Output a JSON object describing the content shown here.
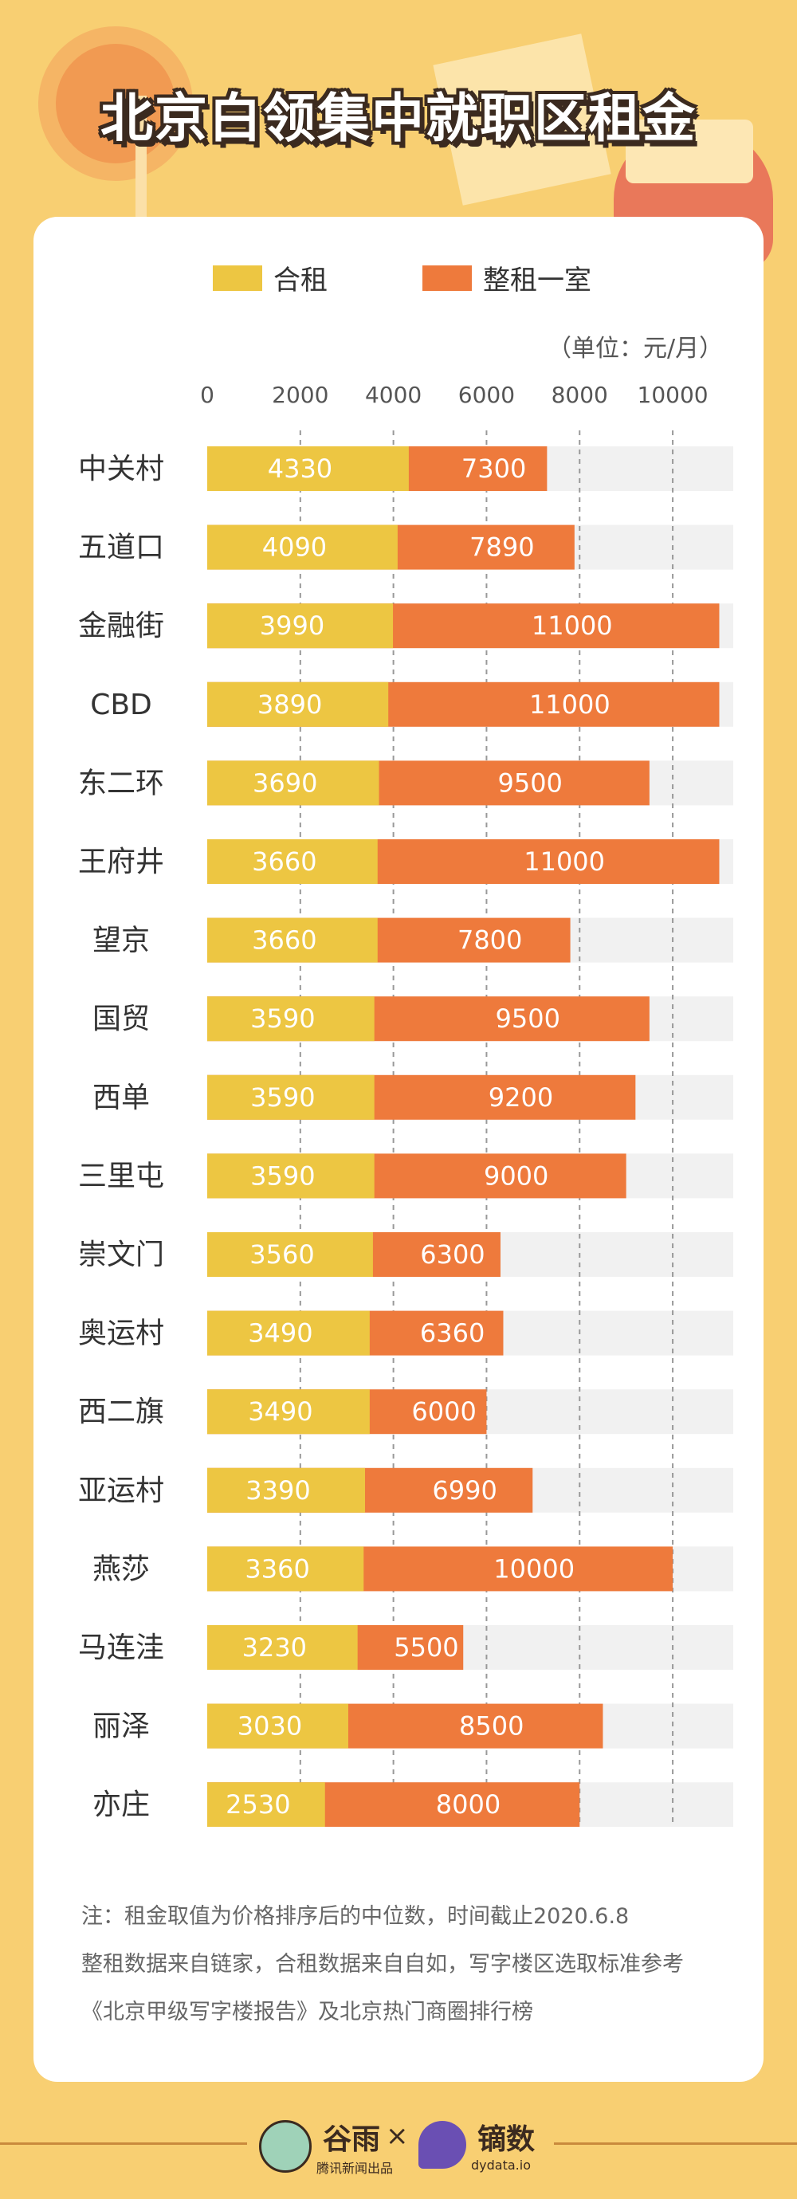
{
  "title": "北京白领集中就职区租金",
  "legend": {
    "shared": "合租",
    "whole": "整租一室"
  },
  "unit": "（单位：元/月）",
  "colors": {
    "shared": "#edc642",
    "whole": "#ee7a3c",
    "track": "#f1f1f1",
    "grid": "#999999",
    "label_light": "#ffffff"
  },
  "chart_data": {
    "type": "bar",
    "stacked_overlay": true,
    "xlim": [
      0,
      11300
    ],
    "ticks": [
      0,
      2000,
      4000,
      6000,
      8000,
      10000
    ],
    "categories": [
      "中关村",
      "五道口",
      "金融街",
      "CBD",
      "东二环",
      "王府井",
      "望京",
      "国贸",
      "西单",
      "三里屯",
      "崇文门",
      "奥运村",
      "西二旗",
      "亚运村",
      "燕莎",
      "马连洼",
      "丽泽",
      "亦庄"
    ],
    "series": [
      {
        "name": "合租",
        "values": [
          4330,
          4090,
          3990,
          3890,
          3690,
          3660,
          3660,
          3590,
          3590,
          3590,
          3560,
          3490,
          3490,
          3390,
          3360,
          3230,
          3030,
          2530
        ]
      },
      {
        "name": "整租一室",
        "values": [
          7300,
          7890,
          11000,
          11000,
          9500,
          11000,
          7800,
          9500,
          9200,
          9000,
          6300,
          6360,
          6000,
          6990,
          10000,
          5500,
          8500,
          8000
        ]
      }
    ],
    "grid": true,
    "legend_position": "top"
  },
  "notes": [
    "注：租金取值为价格排序后的中位数，时间截止2020.6.8",
    "整租数据来自链家，合租数据来自自如，写字楼区选取标准参考",
    "《北京甲级写字楼报告》及北京热门商圈排行榜"
  ],
  "footer": {
    "brand_left": "谷雨",
    "brand_left_sub": "腾讯新闻出品",
    "separator": "×",
    "brand_right": "镝数",
    "brand_right_sub": "dydata.io"
  }
}
